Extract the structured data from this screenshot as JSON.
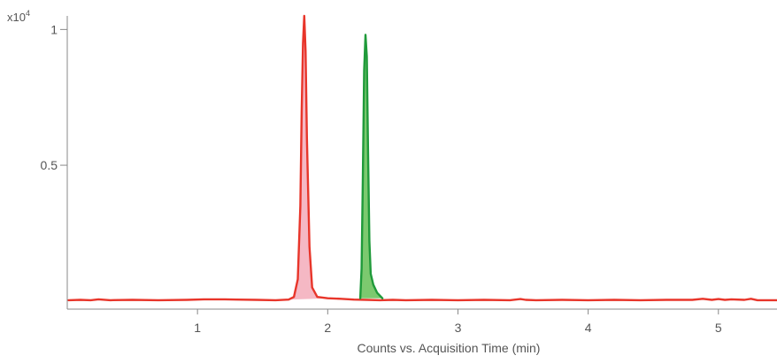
{
  "colors": {
    "background": "#ffffff",
    "axis": "#888888",
    "text": "#555555",
    "series_red_line": "#e8352a",
    "series_red_fill": "#f5b8c4",
    "series_green_line": "#1f9a3a",
    "series_green_fill": "#7cc96f"
  },
  "chart_data": {
    "type": "line",
    "xlabel": "Counts vs. Acquisition Time (min)",
    "ylabel": "",
    "y_multiplier_label": "x10",
    "y_multiplier_exponent": "4",
    "xlim": [
      0,
      5.45
    ],
    "ylim": [
      -0.03,
      1.05
    ],
    "x_ticks": [
      1,
      2,
      3,
      4,
      5
    ],
    "x_tick_labels": [
      "1",
      "2",
      "3",
      "4",
      "5"
    ],
    "y_ticks": [
      0.5,
      1
    ],
    "y_tick_labels": [
      "0.5",
      "1"
    ],
    "grid": false,
    "series": [
      {
        "color": "red",
        "filled_peak": true,
        "x": [
          0.01,
          0.1,
          0.18,
          0.24,
          0.33,
          0.5,
          0.7,
          0.92,
          1.05,
          1.2,
          1.3,
          1.45,
          1.6,
          1.7,
          1.74,
          1.77,
          1.79,
          1.8,
          1.81,
          1.82,
          1.83,
          1.84,
          1.86,
          1.88,
          1.92,
          2.0,
          2.1,
          2.2,
          2.3,
          2.4,
          2.5,
          2.6,
          2.8,
          3.0,
          3.2,
          3.4,
          3.48,
          3.52,
          3.6,
          3.8,
          4.0,
          4.2,
          4.4,
          4.6,
          4.8,
          4.88,
          4.95,
          5.0,
          5.05,
          5.1,
          5.2,
          5.25,
          5.3,
          5.45
        ],
        "y": [
          0.003,
          0.004,
          0.003,
          0.006,
          0.003,
          0.004,
          0.003,
          0.004,
          0.006,
          0.006,
          0.005,
          0.004,
          0.003,
          0.005,
          0.015,
          0.08,
          0.35,
          0.7,
          0.95,
          1.05,
          0.92,
          0.6,
          0.2,
          0.05,
          0.015,
          0.01,
          0.008,
          0.005,
          0.004,
          0.003,
          0.004,
          0.003,
          0.004,
          0.003,
          0.004,
          0.003,
          0.007,
          0.004,
          0.003,
          0.004,
          0.003,
          0.004,
          0.003,
          0.004,
          0.004,
          0.008,
          0.004,
          0.007,
          0.004,
          0.006,
          0.004,
          0.008,
          0.003,
          0.003
        ]
      },
      {
        "color": "green",
        "filled_peak": true,
        "x": [
          2.25,
          2.26,
          2.27,
          2.28,
          2.29,
          2.3,
          2.31,
          2.32,
          2.33,
          2.35,
          2.38,
          2.42
        ],
        "y": [
          0.01,
          0.12,
          0.45,
          0.85,
          0.98,
          0.9,
          0.55,
          0.22,
          0.1,
          0.06,
          0.03,
          0.01
        ]
      }
    ]
  }
}
